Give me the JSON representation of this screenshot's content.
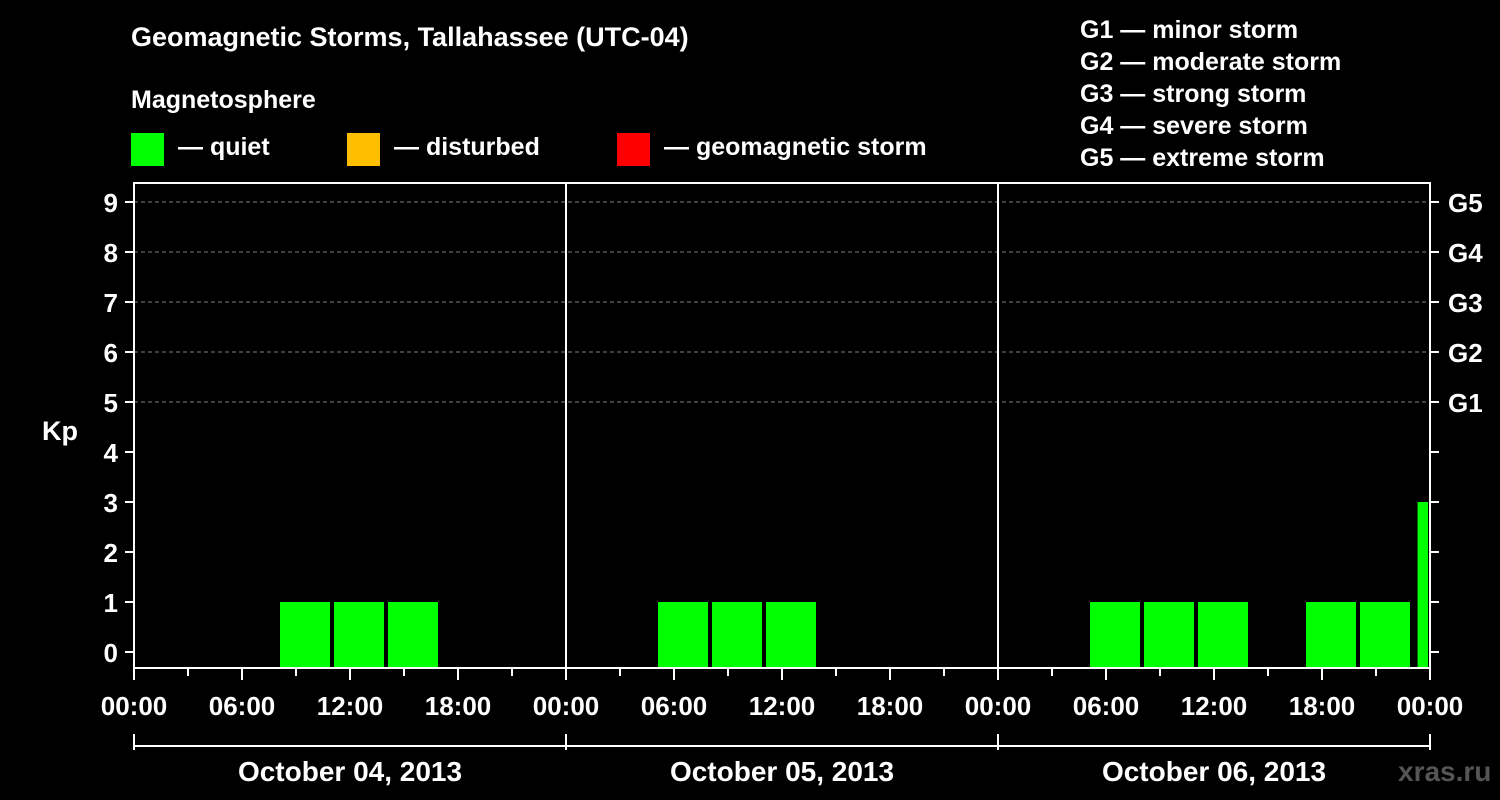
{
  "title": "Geomagnetic Storms, Tallahassee (UTC-04)",
  "subtitle": "Magnetosphere",
  "legend": [
    {
      "label": "— quiet",
      "color": "#00ff00"
    },
    {
      "label": "— disturbed",
      "color": "#ffbf00"
    },
    {
      "label": "— geomagnetic storm",
      "color": "#ff0000"
    }
  ],
  "storm_scale": [
    "G1 — minor storm",
    "G2 — moderate storm",
    "G3 — strong storm",
    "G4 — severe storm",
    "G5 — extreme storm"
  ],
  "watermark": "xras.ru",
  "colors": {
    "background": "#000000",
    "axis": "#ffffff",
    "grid": "#808080",
    "quiet": "#00ff00",
    "disturbed": "#ffbf00",
    "storm": "#ff0000"
  },
  "chart_data": {
    "type": "bar",
    "title": "Geomagnetic Storms, Tallahassee (UTC-04)",
    "ylabel": "Kp",
    "ylim": [
      0,
      9
    ],
    "yticks": [
      "0",
      "1",
      "2",
      "3",
      "4",
      "5",
      "6",
      "7",
      "8",
      "9"
    ],
    "right_axis": [
      {
        "kp": 5,
        "label": "G1"
      },
      {
        "kp": 6,
        "label": "G2"
      },
      {
        "kp": 7,
        "label": "G3"
      },
      {
        "kp": 8,
        "label": "G4"
      },
      {
        "kp": 9,
        "label": "G5"
      }
    ],
    "x_range_hours": [
      0,
      72
    ],
    "xtick_labels": [
      "00:00",
      "06:00",
      "12:00",
      "18:00",
      "00:00",
      "06:00",
      "12:00",
      "18:00",
      "00:00",
      "06:00",
      "12:00",
      "18:00",
      "00:00"
    ],
    "days": [
      "October 04, 2013",
      "October 05, 2013",
      "October 06, 2013"
    ],
    "grid": true,
    "series": [
      {
        "name": "Kp",
        "bars": [
          {
            "start": 8,
            "end": 11,
            "value": 1,
            "level": "quiet"
          },
          {
            "start": 11,
            "end": 14,
            "value": 1,
            "level": "quiet"
          },
          {
            "start": 14,
            "end": 17,
            "value": 1,
            "level": "quiet"
          },
          {
            "start": 29,
            "end": 32,
            "value": 1,
            "level": "quiet"
          },
          {
            "start": 32,
            "end": 35,
            "value": 1,
            "level": "quiet"
          },
          {
            "start": 35,
            "end": 38,
            "value": 1,
            "level": "quiet"
          },
          {
            "start": 53,
            "end": 56,
            "value": 1,
            "level": "quiet"
          },
          {
            "start": 56,
            "end": 59,
            "value": 1,
            "level": "quiet"
          },
          {
            "start": 59,
            "end": 62,
            "value": 1,
            "level": "quiet"
          },
          {
            "start": 65,
            "end": 68,
            "value": 1,
            "level": "quiet"
          },
          {
            "start": 68,
            "end": 71,
            "value": 1,
            "level": "quiet"
          },
          {
            "start": 71.2,
            "end": 72,
            "value": 3,
            "level": "quiet"
          }
        ]
      }
    ]
  }
}
